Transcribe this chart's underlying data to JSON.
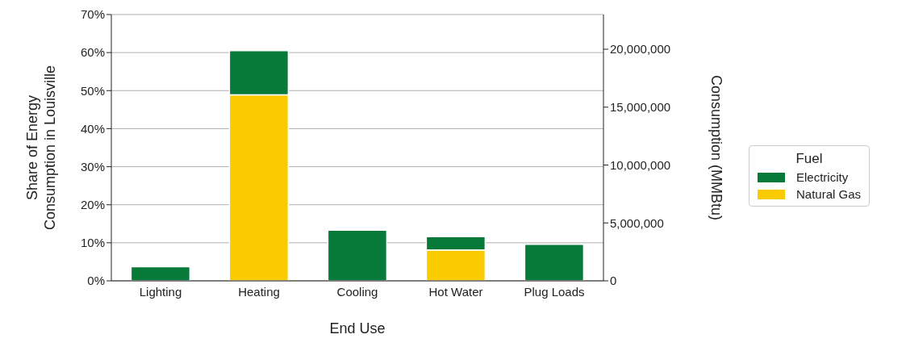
{
  "chart_data": {
    "type": "bar",
    "stacked": true,
    "xlabel": "End Use",
    "ylabel": "Share of Energy Consumption in Louisville",
    "y2label": "Consumption (MMBtu)",
    "legend_title": "Fuel",
    "categories": [
      "Lighting",
      "Heating",
      "Cooling",
      "Hot Water",
      "Plug Loads"
    ],
    "series": [
      {
        "name": "Natural Gas",
        "color": "#f9cb00",
        "values": [
          null,
          48.9,
          null,
          8.1,
          null
        ]
      },
      {
        "name": "Electricity",
        "color": "#077a3a",
        "values": [
          3.7,
          11.6,
          13.3,
          3.5,
          9.6
        ]
      }
    ],
    "ylim": [
      0,
      70
    ],
    "yticks": [
      {
        "value": 0,
        "label": "0%"
      },
      {
        "value": 10,
        "label": "10%"
      },
      {
        "value": 20,
        "label": "20%"
      },
      {
        "value": 30,
        "label": "30%"
      },
      {
        "value": 40,
        "label": "40%"
      },
      {
        "value": 50,
        "label": "50%"
      },
      {
        "value": 60,
        "label": "60%"
      },
      {
        "value": 70,
        "label": "70%"
      }
    ],
    "y2lim": [
      0,
      23000000
    ],
    "y2ticks": [
      {
        "value": 0,
        "label": "0"
      },
      {
        "value": 5000000,
        "label": "5,000,000"
      },
      {
        "value": 10000000,
        "label": "10,000,000"
      },
      {
        "value": 15000000,
        "label": "15,000,000"
      },
      {
        "value": 20000000,
        "label": "20,000,000"
      }
    ],
    "grid": "y",
    "legend": "right"
  }
}
